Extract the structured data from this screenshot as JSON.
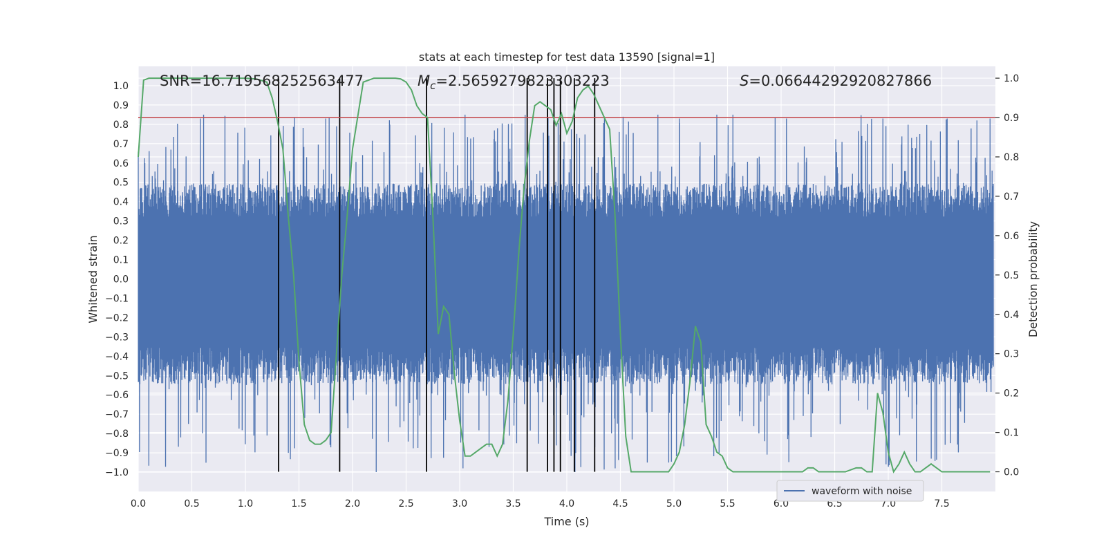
{
  "chart_data": {
    "type": "line",
    "title": "stats at each timestep for test data 13590 [signal=1]",
    "xlabel": "Time (s)",
    "ylabel_left": "Whitened strain",
    "ylabel_right": "Detection probability",
    "xlim": [
      0.0,
      8.0
    ],
    "ylim_left": [
      -1.1,
      1.1
    ],
    "ylim_right": [
      -0.05,
      1.03
    ],
    "x_ticks": [
      "0.0",
      "0.5",
      "1.0",
      "1.5",
      "2.0",
      "2.5",
      "3.0",
      "3.5",
      "4.0",
      "4.5",
      "5.0",
      "5.5",
      "6.0",
      "6.5",
      "7.0",
      "7.5"
    ],
    "x_tick_values": [
      0.0,
      0.5,
      1.0,
      1.5,
      2.0,
      2.5,
      3.0,
      3.5,
      4.0,
      4.5,
      5.0,
      5.5,
      6.0,
      6.5,
      7.0,
      7.5
    ],
    "y_left_ticks": [
      "1.0",
      "0.9",
      "0.8",
      "0.7",
      "0.6",
      "0.5",
      "0.4",
      "0.3",
      "0.2",
      "0.1",
      "0.0",
      "-0.1",
      "-0.2",
      "-0.3",
      "-0.4",
      "-0.5",
      "-0.6",
      "-0.7",
      "-0.8",
      "-0.9",
      "-1.0"
    ],
    "y_left_tick_values": [
      1.0,
      0.9,
      0.8,
      0.7,
      0.6,
      0.5,
      0.4,
      0.3,
      0.2,
      0.1,
      0.0,
      -0.1,
      -0.2,
      -0.3,
      -0.4,
      -0.5,
      -0.6,
      -0.7,
      -0.8,
      -0.9,
      -1.0
    ],
    "y_left_tick_display": [
      "1.0",
      "0.9",
      "0.8",
      "0.7",
      "0.6",
      "0.5",
      "0.4",
      "0.3",
      "0.2",
      "0.1",
      "0.0",
      "−0.1",
      "−0.2",
      "−0.3",
      "−0.4",
      "−0.5",
      "−0.6",
      "−0.7",
      "−0.8",
      "−0.9",
      "−1.0"
    ],
    "y_right_ticks": [
      "1.0",
      "0.9",
      "0.8",
      "0.7",
      "0.6",
      "0.5",
      "0.4",
      "0.3",
      "0.2",
      "0.1",
      "0.0"
    ],
    "y_right_tick_values": [
      1.0,
      0.9,
      0.8,
      0.7,
      0.6,
      0.5,
      0.4,
      0.3,
      0.2,
      0.1,
      0.0
    ],
    "annotations": {
      "snr": "SNR=16.719568252563477",
      "mc_symbol": "M",
      "mc_sub": "c",
      "mc_value": "=2.5659279823303223",
      "s_symbol": "S",
      "s_value": "=0.06644292920827866"
    },
    "legend": {
      "label": "waveform with noise",
      "position": "lower-right"
    },
    "threshold": {
      "value": 0.9,
      "axis": "right",
      "color": "#c44e52"
    },
    "event_lines": [
      1.31,
      1.88,
      2.69,
      3.63,
      3.82,
      3.88,
      3.94,
      4.07,
      4.26
    ],
    "series": [
      {
        "name": "waveform with noise",
        "axis": "left",
        "color": "#4c72b0",
        "seed": 13590,
        "samples": 2200,
        "envelope_upper": 0.38,
        "envelope_lower": -0.42,
        "peak_max": 0.85,
        "trough_min": -1.0,
        "notable_peaks": [
          [
            0.61,
            0.85
          ],
          [
            1.75,
            0.83
          ],
          [
            3.05,
            0.85
          ],
          [
            4.85,
            0.85
          ],
          [
            5.05,
            0.83
          ],
          [
            5.4,
            0.85
          ],
          [
            5.55,
            0.85
          ],
          [
            6.05,
            0.83
          ],
          [
            6.95,
            0.83
          ],
          [
            7.55,
            0.83
          ],
          [
            7.95,
            0.83
          ]
        ],
        "notable_troughs": [
          [
            1.4,
            -0.9
          ],
          [
            2.22,
            -1.0
          ],
          [
            3.03,
            -0.98
          ],
          [
            4.45,
            -0.98
          ],
          [
            4.75,
            -0.95
          ],
          [
            4.95,
            -0.95
          ],
          [
            5.42,
            -0.9
          ],
          [
            7.4,
            -0.93
          ],
          [
            7.58,
            -0.85
          ]
        ]
      },
      {
        "name": "detection probability",
        "axis": "right",
        "color": "#55a868",
        "x": [
          0.0,
          0.05,
          0.1,
          0.2,
          0.5,
          0.8,
          1.0,
          1.1,
          1.2,
          1.25,
          1.3,
          1.35,
          1.4,
          1.45,
          1.5,
          1.55,
          1.6,
          1.65,
          1.7,
          1.75,
          1.8,
          1.85,
          1.9,
          1.95,
          2.0,
          2.1,
          2.2,
          2.3,
          2.4,
          2.45,
          2.5,
          2.55,
          2.6,
          2.65,
          2.7,
          2.75,
          2.8,
          2.85,
          2.9,
          2.95,
          3.0,
          3.05,
          3.1,
          3.15,
          3.2,
          3.25,
          3.3,
          3.35,
          3.4,
          3.45,
          3.5,
          3.55,
          3.6,
          3.65,
          3.7,
          3.75,
          3.8,
          3.85,
          3.9,
          3.95,
          4.0,
          4.05,
          4.1,
          4.15,
          4.2,
          4.25,
          4.3,
          4.35,
          4.4,
          4.45,
          4.5,
          4.55,
          4.6,
          4.7,
          4.8,
          4.85,
          4.9,
          4.95,
          5.0,
          5.05,
          5.1,
          5.15,
          5.2,
          5.25,
          5.3,
          5.35,
          5.4,
          5.45,
          5.5,
          5.55,
          5.6,
          5.8,
          6.0,
          6.1,
          6.2,
          6.25,
          6.3,
          6.35,
          6.4,
          6.5,
          6.6,
          6.7,
          6.75,
          6.8,
          6.85,
          6.9,
          6.95,
          7.0,
          7.05,
          7.1,
          7.15,
          7.2,
          7.25,
          7.3,
          7.35,
          7.4,
          7.45,
          7.5,
          7.6,
          7.7,
          7.8,
          7.9,
          7.95
        ],
        "y": [
          0.8,
          0.995,
          1.0,
          1.0,
          1.0,
          1.0,
          1.0,
          0.998,
          0.99,
          0.95,
          0.89,
          0.82,
          0.65,
          0.5,
          0.28,
          0.12,
          0.08,
          0.07,
          0.07,
          0.08,
          0.1,
          0.3,
          0.5,
          0.65,
          0.82,
          0.99,
          1.0,
          1.0,
          1.0,
          0.998,
          0.99,
          0.97,
          0.93,
          0.91,
          0.9,
          0.65,
          0.35,
          0.42,
          0.4,
          0.25,
          0.13,
          0.04,
          0.04,
          0.05,
          0.06,
          0.07,
          0.07,
          0.04,
          0.07,
          0.18,
          0.35,
          0.55,
          0.72,
          0.84,
          0.93,
          0.94,
          0.93,
          0.92,
          0.88,
          0.91,
          0.86,
          0.89,
          0.95,
          0.97,
          0.98,
          0.96,
          0.93,
          0.9,
          0.87,
          0.65,
          0.35,
          0.09,
          0.0,
          0.0,
          0.0,
          0.0,
          0.0,
          0.0,
          0.02,
          0.05,
          0.12,
          0.23,
          0.37,
          0.33,
          0.12,
          0.09,
          0.05,
          0.04,
          0.01,
          0.0,
          0.0,
          0.0,
          0.0,
          0.0,
          0.0,
          0.01,
          0.01,
          0.0,
          0.0,
          0.0,
          0.0,
          0.01,
          0.01,
          0.0,
          0.0,
          0.2,
          0.15,
          0.05,
          0.0,
          0.02,
          0.05,
          0.02,
          0.0,
          0.0,
          0.01,
          0.02,
          0.01,
          0.0,
          0.0,
          0.0,
          0.0,
          0.0,
          0.0
        ]
      }
    ]
  }
}
